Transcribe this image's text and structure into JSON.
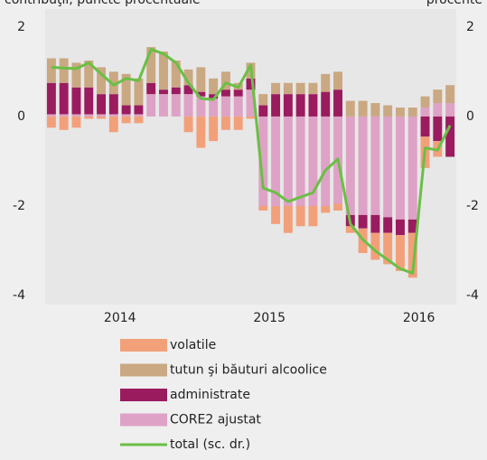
{
  "chart_data": {
    "type": "stacked_bar_line",
    "left_label": "contribuţii, puncte procentuale",
    "right_label": "procente",
    "categories": [
      null,
      null,
      null,
      null,
      null,
      null,
      "2014",
      null,
      null,
      null,
      null,
      null,
      null,
      null,
      null,
      null,
      null,
      null,
      "2015",
      null,
      null,
      null,
      null,
      null,
      null,
      null,
      null,
      null,
      null,
      null,
      "2016",
      null,
      null
    ],
    "ylim": [
      -4.2,
      2.4
    ],
    "yticks": [
      2,
      0,
      -2,
      -4
    ],
    "y2lim": [
      -4.2,
      2.4
    ],
    "y2ticks": [
      2,
      0,
      -2,
      -4
    ],
    "series": [
      {
        "name": "CORE2 ajustat",
        "color": "#dea2c6",
        "values": [
          0.05,
          0.05,
          0.05,
          0.05,
          0.05,
          0.05,
          0.05,
          0.05,
          0.5,
          0.5,
          0.5,
          0.5,
          0.45,
          0.4,
          0.45,
          0.45,
          0.6,
          -2.0,
          -2.0,
          -2.0,
          -2.0,
          -2.0,
          -2.0,
          -1.95,
          -2.2,
          -2.2,
          -2.2,
          -2.25,
          -2.3,
          -2.3,
          0.2,
          0.3,
          0.3
        ]
      },
      {
        "name": "administrate",
        "color": "#9b1b5f",
        "values": [
          0.7,
          0.7,
          0.6,
          0.6,
          0.45,
          0.45,
          0.2,
          0.2,
          0.25,
          0.1,
          0.15,
          0.2,
          0.1,
          0.1,
          0.15,
          0.15,
          0.25,
          0.25,
          0.5,
          0.5,
          0.5,
          0.5,
          0.55,
          0.6,
          -0.25,
          -0.3,
          -0.4,
          -0.35,
          -0.35,
          -0.3,
          -0.45,
          -0.55,
          -0.9
        ]
      },
      {
        "name": "tutun şi băuturi alcoolice",
        "color": "#c9a882",
        "values": [
          0.55,
          0.55,
          0.55,
          0.6,
          0.6,
          0.5,
          0.7,
          0.6,
          0.8,
          0.85,
          0.6,
          0.35,
          0.55,
          0.35,
          0.4,
          0.15,
          0.35,
          0.25,
          0.25,
          0.25,
          0.25,
          0.25,
          0.4,
          0.4,
          0.35,
          0.35,
          0.3,
          0.25,
          0.2,
          0.2,
          0.25,
          0.3,
          0.4
        ]
      },
      {
        "name": "volatile",
        "color": "#f2a07a",
        "values": [
          -0.25,
          -0.3,
          -0.25,
          -0.05,
          -0.05,
          -0.35,
          -0.15,
          -0.15,
          0,
          0,
          0,
          -0.35,
          -0.7,
          -0.55,
          -0.3,
          -0.3,
          -0.05,
          -0.1,
          -0.4,
          -0.6,
          -0.45,
          -0.45,
          -0.15,
          -0.15,
          -0.15,
          -0.55,
          -0.6,
          -0.7,
          -0.8,
          -1.0,
          -0.7,
          -0.35,
          0
        ]
      },
      {
        "name": "total (sc. dr.)",
        "color": "#6abf45",
        "axis": "y2",
        "values": [
          1.1,
          1.08,
          1.07,
          1.2,
          0.95,
          0.7,
          0.85,
          0.8,
          1.5,
          1.4,
          1.2,
          0.75,
          0.4,
          0.38,
          0.75,
          0.65,
          1.15,
          -1.6,
          -1.7,
          -1.9,
          -1.8,
          -1.7,
          -1.2,
          -0.95,
          -2.4,
          -2.75,
          -3.0,
          -3.2,
          -3.4,
          -3.5,
          -0.7,
          -0.75,
          -0.2
        ]
      }
    ],
    "legend_order": [
      3,
      2,
      1,
      0,
      4
    ]
  }
}
